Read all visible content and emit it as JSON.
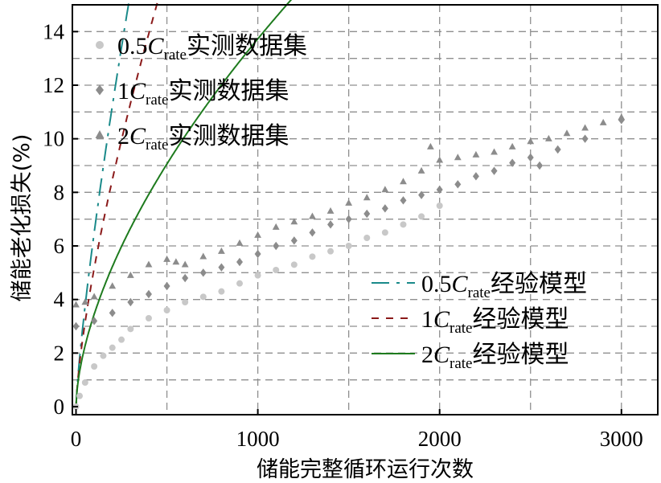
{
  "chart_data": {
    "type": "scatter",
    "xlabel": "储能完整循环运行次数",
    "ylabel": "储能老化损失(%)",
    "xlim": [
      -20,
      3200
    ],
    "ylim": [
      -0.3,
      15
    ],
    "xticks": [
      0,
      1000,
      2000,
      3000
    ],
    "yticks": [
      0,
      2,
      4,
      6,
      8,
      10,
      12,
      14
    ],
    "grid": true,
    "legend_position": "top-left and middle-right",
    "scatter_series": [
      {
        "prefix": "0.5",
        "C": "C",
        "sub": "rate",
        "suffix": "实测数据集",
        "marker": "circle",
        "color": "#c8c8c8",
        "points": [
          [
            0,
            0
          ],
          [
            20,
            0.4
          ],
          [
            50,
            0.9
          ],
          [
            100,
            1.5
          ],
          [
            150,
            1.9
          ],
          [
            200,
            2.2
          ],
          [
            250,
            2.5
          ],
          [
            300,
            2.9
          ],
          [
            400,
            3.3
          ],
          [
            500,
            3.6
          ],
          [
            600,
            3.9
          ],
          [
            700,
            4.1
          ],
          [
            800,
            4.3
          ],
          [
            900,
            4.6
          ],
          [
            1000,
            4.9
          ],
          [
            1100,
            5.1
          ],
          [
            1200,
            5.3
          ],
          [
            1300,
            5.6
          ],
          [
            1400,
            5.8
          ],
          [
            1500,
            6.0
          ],
          [
            1600,
            6.3
          ],
          [
            1700,
            6.5
          ],
          [
            1800,
            6.8
          ],
          [
            1900,
            7.1
          ],
          [
            2000,
            7.5
          ]
        ]
      },
      {
        "prefix": "1",
        "C": "C",
        "sub": "rate",
        "suffix": "实测数据集",
        "marker": "diamond",
        "color": "#8c8c8c",
        "points": [
          [
            0,
            3.0
          ],
          [
            100,
            3.2
          ],
          [
            200,
            3.5
          ],
          [
            300,
            3.9
          ],
          [
            400,
            4.2
          ],
          [
            500,
            4.5
          ],
          [
            600,
            4.8
          ],
          [
            700,
            5.0
          ],
          [
            800,
            5.2
          ],
          [
            900,
            5.4
          ],
          [
            1000,
            5.7
          ],
          [
            1100,
            6.0
          ],
          [
            1200,
            6.2
          ],
          [
            1300,
            6.5
          ],
          [
            1400,
            6.8
          ],
          [
            1500,
            7.0
          ],
          [
            1600,
            7.2
          ],
          [
            1700,
            7.4
          ],
          [
            1800,
            7.7
          ],
          [
            1900,
            7.9
          ],
          [
            2000,
            8.1
          ],
          [
            2100,
            8.3
          ],
          [
            2200,
            8.6
          ],
          [
            2300,
            8.8
          ],
          [
            2400,
            9.1
          ],
          [
            2500,
            9.3
          ],
          [
            2550,
            9.0
          ],
          [
            2650,
            9.6
          ],
          [
            2800,
            10.0
          ],
          [
            3000,
            10.7
          ]
        ]
      },
      {
        "prefix": "2",
        "C": "C",
        "sub": "rate",
        "suffix": "实测数据集",
        "marker": "triangle",
        "color": "#8c8c8c",
        "points": [
          [
            0,
            3.8
          ],
          [
            50,
            3.9
          ],
          [
            100,
            4.1
          ],
          [
            200,
            4.5
          ],
          [
            300,
            4.9
          ],
          [
            400,
            5.3
          ],
          [
            500,
            5.5
          ],
          [
            550,
            5.4
          ],
          [
            600,
            5.3
          ],
          [
            700,
            5.6
          ],
          [
            800,
            5.8
          ],
          [
            900,
            6.1
          ],
          [
            1000,
            6.4
          ],
          [
            1100,
            6.7
          ],
          [
            1200,
            6.9
          ],
          [
            1300,
            7.1
          ],
          [
            1400,
            7.3
          ],
          [
            1500,
            7.6
          ],
          [
            1600,
            7.8
          ],
          [
            1700,
            8.1
          ],
          [
            1800,
            8.4
          ],
          [
            1900,
            8.8
          ],
          [
            1950,
            9.7
          ],
          [
            2000,
            9.2
          ],
          [
            2100,
            9.3
          ],
          [
            2200,
            9.4
          ],
          [
            2300,
            9.5
          ],
          [
            2400,
            9.7
          ],
          [
            2500,
            9.9
          ],
          [
            2600,
            10.0
          ],
          [
            2700,
            10.2
          ],
          [
            2800,
            10.4
          ],
          [
            2900,
            10.6
          ],
          [
            3000,
            10.8
          ]
        ]
      }
    ],
    "model_series": [
      {
        "prefix": "0.5",
        "C": "C",
        "sub": "rate",
        "suffix": "经验模型",
        "color": "#1a8a8a",
        "dash": "22 9 4 9",
        "coef": 0.1709,
        "power": 0.79,
        "x_range": [
          0,
          2000
        ]
      },
      {
        "prefix": "1",
        "C": "C",
        "sub": "rate",
        "suffix": "经验模型",
        "color": "#8b1a1a",
        "dash": "9 9",
        "coef": 0.1919,
        "power": 0.715,
        "x_range": [
          0,
          2550
        ]
      },
      {
        "prefix": "2",
        "C": "C",
        "sub": "rate",
        "suffix": "经验模型",
        "color": "#1e7b1e",
        "dash": "",
        "coef": 0.2176,
        "power": 0.6,
        "x_range": [
          0,
          3000
        ]
      }
    ]
  }
}
